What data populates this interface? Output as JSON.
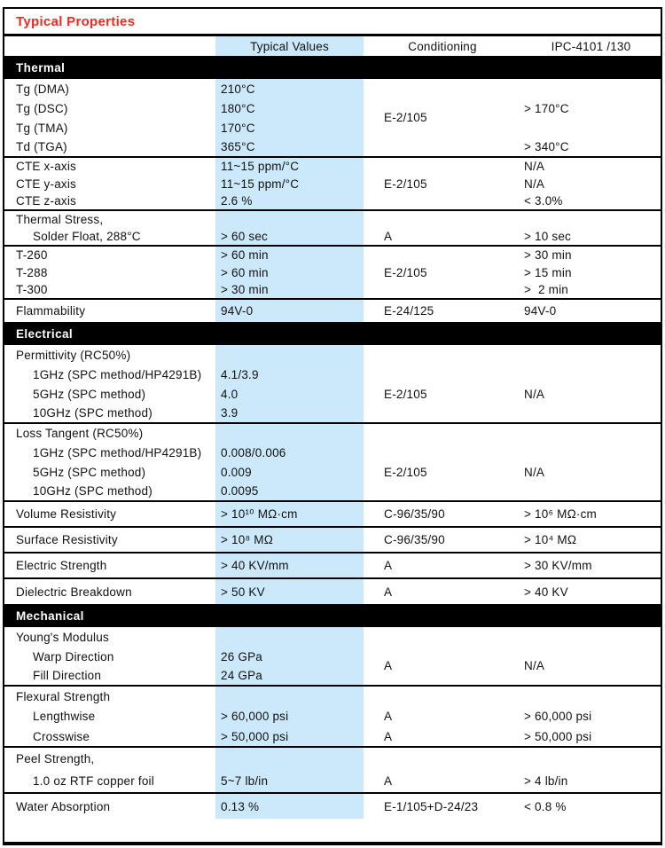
{
  "title": "Typical Properties",
  "colors": {
    "accent_red": "#f9261f",
    "highlight_blue": "#cbe9fb",
    "section_bar": "#000000"
  },
  "header": {
    "property": "",
    "typical": "Typical Values",
    "conditioning": "Conditioning",
    "ipc": "IPC-4101 /130"
  },
  "body": [
    {
      "type": "bar",
      "text": "Thermal"
    },
    {
      "type": "group",
      "rows": [
        {
          "cells": [
            {
              "c": "label",
              "t": "Tg (DMA)"
            },
            {
              "c": "val",
              "t": "210°C"
            },
            {
              "c": "cond",
              "t": "E-2/105",
              "rs": 4
            },
            {
              "c": "ipc",
              "t": "> 170°C",
              "rs": 3
            }
          ]
        },
        {
          "cells": [
            {
              "c": "label",
              "t": "Tg (DSC)"
            },
            {
              "c": "val",
              "t": "180°C"
            }
          ]
        },
        {
          "cells": [
            {
              "c": "label",
              "t": "Tg (TMA)"
            },
            {
              "c": "val",
              "t": "170°C"
            }
          ]
        },
        {
          "cells": [
            {
              "c": "label",
              "t": "Td (TGA)"
            },
            {
              "c": "val",
              "t": "365°C"
            },
            {
              "c": "ipc",
              "t": "> 340°C"
            }
          ]
        }
      ]
    },
    {
      "type": "group",
      "rows": [
        {
          "cells": [
            {
              "c": "label",
              "t": "CTE x-axis"
            },
            {
              "c": "val",
              "t": "11~15 ppm/°C"
            },
            {
              "c": "cond",
              "t": "E-2/105",
              "rs": 3
            },
            {
              "c": "ipc",
              "t": "N/A"
            }
          ]
        },
        {
          "cells": [
            {
              "c": "label",
              "t": "CTE y-axis"
            },
            {
              "c": "val",
              "t": "11~15 ppm/°C"
            },
            {
              "c": "ipc",
              "t": "N/A"
            }
          ]
        },
        {
          "cells": [
            {
              "c": "label",
              "t": "CTE z-axis"
            },
            {
              "c": "val",
              "t": "2.6 %"
            },
            {
              "c": "ipc",
              "t": "< 3.0%"
            }
          ]
        }
      ]
    },
    {
      "type": "group",
      "rows": [
        {
          "cells": [
            {
              "c": "label",
              "t": "Thermal Stress,"
            },
            {
              "c": "val",
              "t": ""
            },
            {
              "c": "cond",
              "t": ""
            },
            {
              "c": "ipc",
              "t": ""
            }
          ]
        },
        {
          "cells": [
            {
              "c": "label",
              "t": "Solder Float, 288°C",
              "ind": true
            },
            {
              "c": "val",
              "t": "> 60 sec"
            },
            {
              "c": "cond",
              "t": "A"
            },
            {
              "c": "ipc",
              "t": "> 10 sec"
            }
          ]
        }
      ]
    },
    {
      "type": "group",
      "rows": [
        {
          "cells": [
            {
              "c": "label",
              "t": "T-260"
            },
            {
              "c": "val",
              "t": "> 60 min"
            },
            {
              "c": "cond",
              "t": "E-2/105",
              "rs": 3
            },
            {
              "c": "ipc",
              "t": "> 30 min"
            }
          ]
        },
        {
          "cells": [
            {
              "c": "label",
              "t": "T-288"
            },
            {
              "c": "val",
              "t": "> 60 min"
            },
            {
              "c": "ipc",
              "t": "> 15 min"
            }
          ]
        },
        {
          "cells": [
            {
              "c": "label",
              "t": "T-300"
            },
            {
              "c": "val",
              "t": "> 30 min"
            },
            {
              "c": "ipc",
              "t": ">  2 min"
            }
          ]
        }
      ]
    },
    {
      "type": "group",
      "rows": [
        {
          "cells": [
            {
              "c": "label",
              "t": "Flammability"
            },
            {
              "c": "val",
              "t": "94V-0"
            },
            {
              "c": "cond",
              "t": "E-24/125"
            },
            {
              "c": "ipc",
              "t": "94V-0"
            }
          ]
        }
      ]
    },
    {
      "type": "bar",
      "text": "Electrical"
    },
    {
      "type": "group",
      "rows": [
        {
          "cells": [
            {
              "c": "label",
              "t": "Permittivity (RC50%)"
            },
            {
              "c": "val",
              "t": ""
            },
            {
              "c": "cond",
              "t": ""
            },
            {
              "c": "ipc",
              "t": ""
            }
          ]
        },
        {
          "cells": [
            {
              "c": "label",
              "t": "1GHz (SPC method/HP4291B)",
              "ind": true
            },
            {
              "c": "val",
              "t": "4.1/3.9"
            },
            {
              "c": "cond",
              "t": ""
            },
            {
              "c": "ipc",
              "t": ""
            }
          ]
        },
        {
          "cells": [
            {
              "c": "label",
              "t": "5GHz (SPC method)",
              "ind": true
            },
            {
              "c": "val",
              "t": "4.0"
            },
            {
              "c": "cond",
              "t": "E-2/105"
            },
            {
              "c": "ipc",
              "t": "N/A"
            }
          ]
        },
        {
          "cells": [
            {
              "c": "label",
              "t": "10GHz (SPC method)",
              "ind": true
            },
            {
              "c": "val",
              "t": "3.9"
            },
            {
              "c": "cond",
              "t": ""
            },
            {
              "c": "ipc",
              "t": ""
            }
          ]
        }
      ]
    },
    {
      "type": "group",
      "rows": [
        {
          "cells": [
            {
              "c": "label",
              "t": "Loss Tangent (RC50%)"
            },
            {
              "c": "val",
              "t": ""
            },
            {
              "c": "cond",
              "t": ""
            },
            {
              "c": "ipc",
              "t": ""
            }
          ]
        },
        {
          "cells": [
            {
              "c": "label",
              "t": "1GHz (SPC method/HP4291B)",
              "ind": true
            },
            {
              "c": "val",
              "t": "0.008/0.006"
            },
            {
              "c": "cond",
              "t": ""
            },
            {
              "c": "ipc",
              "t": ""
            }
          ]
        },
        {
          "cells": [
            {
              "c": "label",
              "t": "5GHz (SPC method)",
              "ind": true
            },
            {
              "c": "val",
              "t": "0.009"
            },
            {
              "c": "cond",
              "t": "E-2/105"
            },
            {
              "c": "ipc",
              "t": "N/A"
            }
          ]
        },
        {
          "cells": [
            {
              "c": "label",
              "t": "10GHz (SPC method)",
              "ind": true
            },
            {
              "c": "val",
              "t": "0.0095"
            },
            {
              "c": "cond",
              "t": ""
            },
            {
              "c": "ipc",
              "t": ""
            }
          ]
        }
      ]
    },
    {
      "type": "group",
      "rows": [
        {
          "cells": [
            {
              "c": "label",
              "t": "Volume Resistivity"
            },
            {
              "c": "val",
              "t": "> 10¹⁰ MΩ·cm"
            },
            {
              "c": "cond",
              "t": "C-96/35/90"
            },
            {
              "c": "ipc",
              "t": "> 10⁶ MΩ·cm"
            }
          ]
        }
      ]
    },
    {
      "type": "group",
      "rows": [
        {
          "cells": [
            {
              "c": "label",
              "t": "Surface Resistivity"
            },
            {
              "c": "val",
              "t": "> 10⁸ MΩ"
            },
            {
              "c": "cond",
              "t": "C-96/35/90"
            },
            {
              "c": "ipc",
              "t": "> 10⁴ MΩ"
            }
          ]
        }
      ]
    },
    {
      "type": "group",
      "rows": [
        {
          "cells": [
            {
              "c": "label",
              "t": "Electric Strength"
            },
            {
              "c": "val",
              "t": "> 40 KV/mm"
            },
            {
              "c": "cond",
              "t": "A"
            },
            {
              "c": "ipc",
              "t": "> 30 KV/mm"
            }
          ]
        }
      ]
    },
    {
      "type": "group",
      "rows": [
        {
          "cells": [
            {
              "c": "label",
              "t": "Dielectric Breakdown"
            },
            {
              "c": "val",
              "t": "> 50 KV"
            },
            {
              "c": "cond",
              "t": "A"
            },
            {
              "c": "ipc",
              "t": "> 40 KV"
            }
          ]
        }
      ]
    },
    {
      "type": "bar",
      "text": "Mechanical"
    },
    {
      "type": "group",
      "rows": [
        {
          "cells": [
            {
              "c": "label",
              "t": "Young's Modulus"
            },
            {
              "c": "val",
              "t": ""
            },
            {
              "c": "cond",
              "t": ""
            },
            {
              "c": "ipc",
              "t": ""
            }
          ]
        },
        {
          "cells": [
            {
              "c": "label",
              "t": "Warp Direction",
              "ind": true
            },
            {
              "c": "val",
              "t": "26 GPa"
            },
            {
              "c": "cond",
              "t": "A",
              "rs": 2
            },
            {
              "c": "ipc",
              "t": "N/A",
              "rs": 2
            }
          ]
        },
        {
          "cells": [
            {
              "c": "label",
              "t": "Fill Direction",
              "ind": true
            },
            {
              "c": "val",
              "t": "24 GPa"
            }
          ]
        }
      ]
    },
    {
      "type": "group",
      "rows": [
        {
          "cells": [
            {
              "c": "label",
              "t": "Flexural Strength"
            },
            {
              "c": "val",
              "t": ""
            },
            {
              "c": "cond",
              "t": ""
            },
            {
              "c": "ipc",
              "t": ""
            }
          ]
        },
        {
          "cells": [
            {
              "c": "label",
              "t": "Lengthwise",
              "ind": true
            },
            {
              "c": "val",
              "t": "> 60,000 psi"
            },
            {
              "c": "cond",
              "t": "A"
            },
            {
              "c": "ipc",
              "t": "> 60,000 psi"
            }
          ]
        },
        {
          "cells": [
            {
              "c": "label",
              "t": "Crosswise",
              "ind": true
            },
            {
              "c": "val",
              "t": "> 50,000 psi"
            },
            {
              "c": "cond",
              "t": "A"
            },
            {
              "c": "ipc",
              "t": "> 50,000 psi"
            }
          ]
        }
      ]
    },
    {
      "type": "group",
      "rows": [
        {
          "cells": [
            {
              "c": "label",
              "t": "Peel Strength,"
            },
            {
              "c": "val",
              "t": ""
            },
            {
              "c": "cond",
              "t": ""
            },
            {
              "c": "ipc",
              "t": ""
            }
          ]
        },
        {
          "cells": [
            {
              "c": "label",
              "t": "1.0 oz RTF copper foil",
              "ind": true
            },
            {
              "c": "val",
              "t": "5~7 lb/in"
            },
            {
              "c": "cond",
              "t": "A"
            },
            {
              "c": "ipc",
              "t": "> 4 lb/in"
            }
          ]
        }
      ]
    },
    {
      "type": "group",
      "rows": [
        {
          "cells": [
            {
              "c": "label",
              "t": "Water Absorption"
            },
            {
              "c": "val",
              "t": "0.13 %"
            },
            {
              "c": "cond",
              "t": "E-1/105+D-24/23"
            },
            {
              "c": "ipc",
              "t": "< 0.8 %"
            }
          ]
        }
      ]
    }
  ]
}
